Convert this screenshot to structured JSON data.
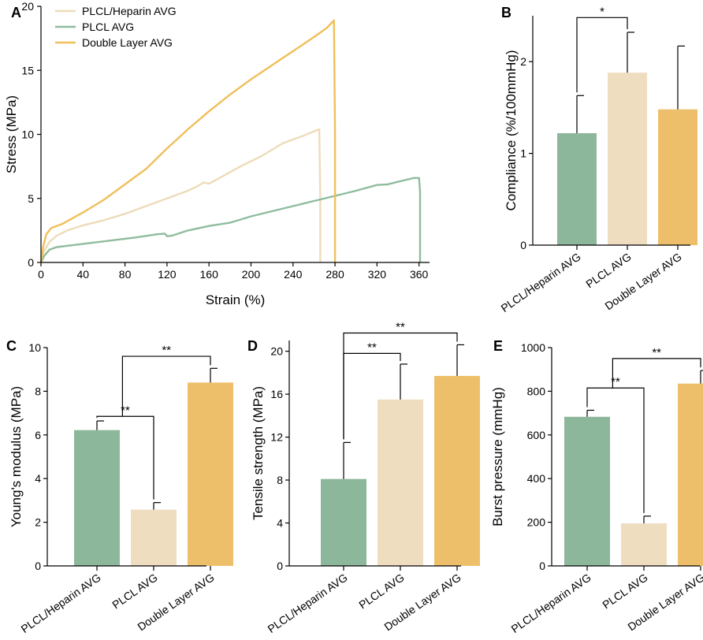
{
  "colors": {
    "heparin": "#8db79b",
    "plcl": "#efddc0",
    "double": "#eebf6a",
    "plcl_line": "#eddcb9",
    "heparin_line": "#8fbc9e",
    "double_line": "#f0bf5a"
  },
  "chart_data": [
    {
      "id": "A",
      "panel_label": "A",
      "type": "line",
      "xlabel": "Strain (%)",
      "ylabel": "Stress (MPa)",
      "xlim": [
        0,
        370
      ],
      "ylim": [
        0,
        20
      ],
      "xticks": [
        0,
        40,
        80,
        120,
        160,
        200,
        240,
        280,
        320,
        360
      ],
      "yticks": [
        0,
        5,
        10,
        15,
        20
      ],
      "legend": [
        "PLCL/Heparin AVG",
        "PLCL AVG",
        "Double Layer AVG"
      ],
      "series": [
        {
          "name": "PLCL/Heparin AVG",
          "color": "#eddcb9",
          "points": [
            [
              0,
              0
            ],
            [
              3,
              0.9
            ],
            [
              8,
              1.6
            ],
            [
              15,
              2.1
            ],
            [
              25,
              2.5
            ],
            [
              40,
              2.9
            ],
            [
              60,
              3.3
            ],
            [
              80,
              3.8
            ],
            [
              100,
              4.4
            ],
            [
              120,
              5.0
            ],
            [
              140,
              5.6
            ],
            [
              150,
              6.0
            ],
            [
              155,
              6.25
            ],
            [
              160,
              6.15
            ],
            [
              170,
              6.6
            ],
            [
              190,
              7.5
            ],
            [
              210,
              8.3
            ],
            [
              230,
              9.3
            ],
            [
              250,
              9.9
            ],
            [
              265,
              10.4
            ],
            [
              266,
              5.0
            ],
            [
              266,
              0
            ]
          ]
        },
        {
          "name": "PLCL AVG",
          "color": "#8fbc9e",
          "points": [
            [
              0,
              0
            ],
            [
              3,
              0.5
            ],
            [
              8,
              1.0
            ],
            [
              15,
              1.2
            ],
            [
              30,
              1.35
            ],
            [
              50,
              1.55
            ],
            [
              70,
              1.75
            ],
            [
              90,
              1.95
            ],
            [
              110,
              2.2
            ],
            [
              118,
              2.25
            ],
            [
              120,
              2.05
            ],
            [
              125,
              2.1
            ],
            [
              140,
              2.5
            ],
            [
              160,
              2.85
            ],
            [
              180,
              3.1
            ],
            [
              200,
              3.6
            ],
            [
              220,
              4.0
            ],
            [
              240,
              4.4
            ],
            [
              260,
              4.8
            ],
            [
              280,
              5.2
            ],
            [
              300,
              5.6
            ],
            [
              320,
              6.05
            ],
            [
              330,
              6.1
            ],
            [
              345,
              6.4
            ],
            [
              355,
              6.6
            ],
            [
              360,
              6.6
            ],
            [
              361,
              5.5
            ],
            [
              361,
              0
            ]
          ]
        },
        {
          "name": "Double Layer AVG",
          "color": "#f0bf5a",
          "points": [
            [
              0,
              0
            ],
            [
              2,
              1.2
            ],
            [
              5,
              2.2
            ],
            [
              10,
              2.7
            ],
            [
              20,
              3.0
            ],
            [
              40,
              3.9
            ],
            [
              60,
              4.9
            ],
            [
              80,
              6.1
            ],
            [
              100,
              7.3
            ],
            [
              120,
              8.9
            ],
            [
              140,
              10.4
            ],
            [
              160,
              11.8
            ],
            [
              180,
              13.1
            ],
            [
              200,
              14.3
            ],
            [
              220,
              15.4
            ],
            [
              240,
              16.5
            ],
            [
              260,
              17.6
            ],
            [
              272,
              18.3
            ],
            [
              278,
              18.8
            ],
            [
              279,
              18.9
            ],
            [
              280,
              10
            ],
            [
              280,
              0
            ]
          ]
        }
      ]
    },
    {
      "id": "B",
      "panel_label": "B",
      "type": "bar",
      "ylabel": "Compliance (%/100mmHg)",
      "ylim": [
        0,
        2.5
      ],
      "yticks": [
        0,
        1,
        2
      ],
      "categories": [
        "PLCL/Heparin AVG",
        "PLCL AVG",
        "Double Layer AVG"
      ],
      "values": [
        1.22,
        1.88,
        1.48
      ],
      "errors": [
        0.41,
        0.44,
        0.69
      ],
      "significance": [
        {
          "from": 0,
          "to": 1,
          "label": "*",
          "y": 2.48
        }
      ]
    },
    {
      "id": "C",
      "panel_label": "C",
      "type": "bar",
      "ylabel": "Young's modulus (MPa)",
      "ylim": [
        0,
        10
      ],
      "yticks": [
        0,
        2,
        4,
        6,
        8,
        10
      ],
      "categories": [
        "PLCL/Heparin AVG",
        "PLCL AVG",
        "Double Layer AVG"
      ],
      "values": [
        6.22,
        2.58,
        8.4
      ],
      "errors": [
        0.42,
        0.32,
        0.65
      ],
      "significance": [
        {
          "from": 0,
          "to": 1,
          "label": "**",
          "y": 6.85
        },
        {
          "from": 0.45,
          "to": 2,
          "label": "**",
          "y": 9.6
        }
      ]
    },
    {
      "id": "D",
      "panel_label": "D",
      "type": "bar",
      "ylabel": "Tensile strength (MPa)",
      "ylim": [
        0,
        21
      ],
      "yticks": [
        0,
        4,
        8,
        12,
        16,
        20
      ],
      "categories": [
        "PLCL/Heparin AVG",
        "PLCL AVG",
        "Double Layer AVG"
      ],
      "values": [
        8.1,
        15.5,
        17.7
      ],
      "errors": [
        3.4,
        3.3,
        2.9
      ],
      "significance": [
        {
          "from": 0,
          "to": 1,
          "label": "**",
          "y": 19.8
        },
        {
          "from": 0,
          "to": 2,
          "label": "**",
          "y": 21.7
        }
      ]
    },
    {
      "id": "E",
      "panel_label": "E",
      "type": "bar",
      "ylabel": "Burst pressure (mmHg)",
      "ylim": [
        0,
        1000
      ],
      "yticks": [
        0,
        200,
        400,
        600,
        800,
        1000
      ],
      "categories": [
        "PLCL/Heparin AVG",
        "PLCL AVG",
        "Double Layer AVG"
      ],
      "values": [
        683,
        195,
        835
      ],
      "errors": [
        30,
        33,
        60
      ],
      "significance": [
        {
          "from": 0,
          "to": 1,
          "label": "**",
          "y": 815
        },
        {
          "from": 0.45,
          "to": 2,
          "label": "**",
          "y": 950
        }
      ]
    }
  ]
}
